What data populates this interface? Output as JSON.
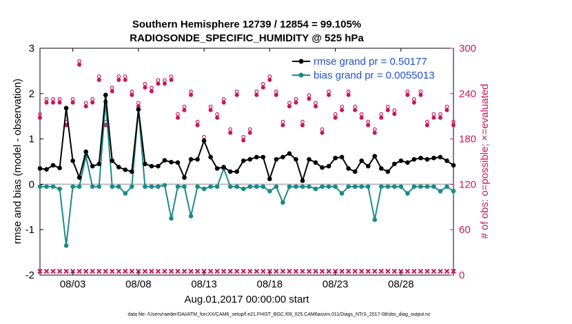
{
  "chart_data": {
    "type": "line",
    "title": "Southern Hemisphere 12739 / 12854 = 99.105%",
    "subtitle": "RADIOSONDE_SPECIFIC_HUMIDITY @ 525 hPa",
    "xlabel": "Aug.01,2017 00:00:00 start",
    "ylabel": "rmse and bias (model - observation)",
    "y2label": "# of obs: o=possible; ×=evaluated",
    "xlim": [
      0.5,
      32.0
    ],
    "ylim": [
      -2,
      3
    ],
    "y2lim": [
      0,
      300
    ],
    "xticks": [
      3,
      8,
      13,
      18,
      23,
      28
    ],
    "xtick_labels": [
      "08/03",
      "08/08",
      "08/13",
      "08/18",
      "08/23",
      "08/28"
    ],
    "yticks": [
      -2,
      -1,
      0,
      1,
      2,
      3
    ],
    "ytick_labels": [
      "-2",
      "-1",
      "0",
      "1",
      "2",
      "3"
    ],
    "y2ticks": [
      0,
      60,
      120,
      180,
      240,
      300
    ],
    "y2tick_labels": [
      "0",
      "60",
      "120",
      "180",
      "240",
      "300"
    ],
    "x": [
      0.5,
      1.0,
      1.5,
      2.0,
      2.5,
      3.0,
      3.5,
      4.0,
      4.5,
      5.0,
      5.5,
      6.0,
      6.5,
      7.0,
      7.5,
      8.0,
      8.5,
      9.0,
      9.5,
      10.0,
      10.5,
      11.0,
      11.5,
      12.0,
      12.5,
      13.0,
      13.5,
      14.0,
      14.5,
      15.0,
      15.5,
      16.0,
      16.5,
      17.0,
      17.5,
      18.0,
      18.5,
      19.0,
      19.5,
      20.0,
      20.5,
      21.0,
      21.5,
      22.0,
      22.5,
      23.0,
      23.5,
      24.0,
      24.5,
      25.0,
      25.5,
      26.0,
      26.5,
      27.0,
      27.5,
      28.0,
      28.5,
      29.0,
      29.5,
      30.0,
      30.5,
      31.0,
      31.5,
      32.0
    ],
    "series": [
      {
        "name": "rmse",
        "legend": "rmse grand pr = 0.50177",
        "color": "#000000",
        "values": [
          0.35,
          0.33,
          0.42,
          0.36,
          1.68,
          0.52,
          0.15,
          0.72,
          0.4,
          0.45,
          1.97,
          0.52,
          0.38,
          0.32,
          0.28,
          1.65,
          0.45,
          0.4,
          0.4,
          0.53,
          0.49,
          0.48,
          0.15,
          0.55,
          0.55,
          0.96,
          0.6,
          0.35,
          0.38,
          0.28,
          0.28,
          0.52,
          0.55,
          0.6,
          0.6,
          0.12,
          0.55,
          0.6,
          0.68,
          0.55,
          0.08,
          0.55,
          0.48,
          0.37,
          0.4,
          0.58,
          0.6,
          0.35,
          0.28,
          0.52,
          0.4,
          0.62,
          0.35,
          0.28,
          0.45,
          0.52,
          0.48,
          0.55,
          0.58,
          0.55,
          0.58,
          0.6,
          0.52,
          0.42
        ]
      },
      {
        "name": "bias",
        "legend": "bias grand pr = 0.0055013",
        "color": "#1a8a8a",
        "values": [
          -0.05,
          -0.05,
          -0.05,
          -0.1,
          -1.35,
          -0.05,
          -0.05,
          0.62,
          -0.05,
          -0.05,
          1.82,
          -0.05,
          -0.05,
          -0.2,
          -0.05,
          1.65,
          -0.05,
          -0.05,
          -0.05,
          -0.02,
          -0.75,
          -0.05,
          -0.05,
          -0.7,
          -0.05,
          -0.1,
          -0.05,
          -0.05,
          0.35,
          -0.05,
          -0.05,
          -0.1,
          -0.05,
          -0.05,
          -0.05,
          -0.15,
          -0.05,
          -0.4,
          -0.05,
          -0.05,
          -0.05,
          -0.05,
          -0.1,
          -0.05,
          -0.05,
          -0.05,
          -0.2,
          -0.05,
          -0.05,
          -0.05,
          -0.05,
          -0.78,
          -0.05,
          -0.05,
          -0.05,
          -0.05,
          -0.2,
          -0.05,
          -0.05,
          -0.05,
          -0.05,
          -0.15,
          -0.05,
          -0.15
        ]
      }
    ],
    "obs_possible": [
      210,
      230,
      230,
      230,
      200,
      230,
      280,
      225,
      230,
      260,
      200,
      245,
      260,
      260,
      240,
      225,
      250,
      245,
      255,
      255,
      260,
      210,
      220,
      240,
      200,
      180,
      220,
      210,
      230,
      190,
      240,
      180,
      190,
      240,
      250,
      260,
      240,
      200,
      225,
      230,
      200,
      235,
      225,
      190,
      240,
      210,
      220,
      240,
      220,
      210,
      200,
      190,
      210,
      220,
      215,
      260,
      240,
      230,
      240,
      200,
      210,
      210,
      220,
      200
    ],
    "obs_evaluated": [
      5,
      5,
      5,
      5,
      5,
      5,
      5,
      5,
      5,
      5,
      5,
      5,
      5,
      5,
      5,
      5,
      5,
      5,
      5,
      5,
      5,
      5,
      5,
      5,
      5,
      5,
      5,
      5,
      5,
      5,
      5,
      5,
      5,
      5,
      5,
      5,
      5,
      5,
      5,
      5,
      5,
      5,
      5,
      5,
      5,
      5,
      5,
      5,
      5,
      5,
      5,
      5,
      5,
      5,
      5,
      5,
      5,
      5,
      5,
      5,
      5,
      5,
      5,
      5
    ],
    "zero_line": 0
  },
  "footnote": "data file: /Users/raeder/DAI/ATM_forcXX/CAM6_setup/f.e21.FHIST_BGC.f09_025.CAM6assim.011/Diags_NTrS_2017-08/obs_diag_output.nc",
  "colors": {
    "rmse": "#000000",
    "bias": "#1a8a8a",
    "obs": "#c8185a",
    "legend_text": "#1f4fd6",
    "zero_line": "#bbbbbb"
  }
}
